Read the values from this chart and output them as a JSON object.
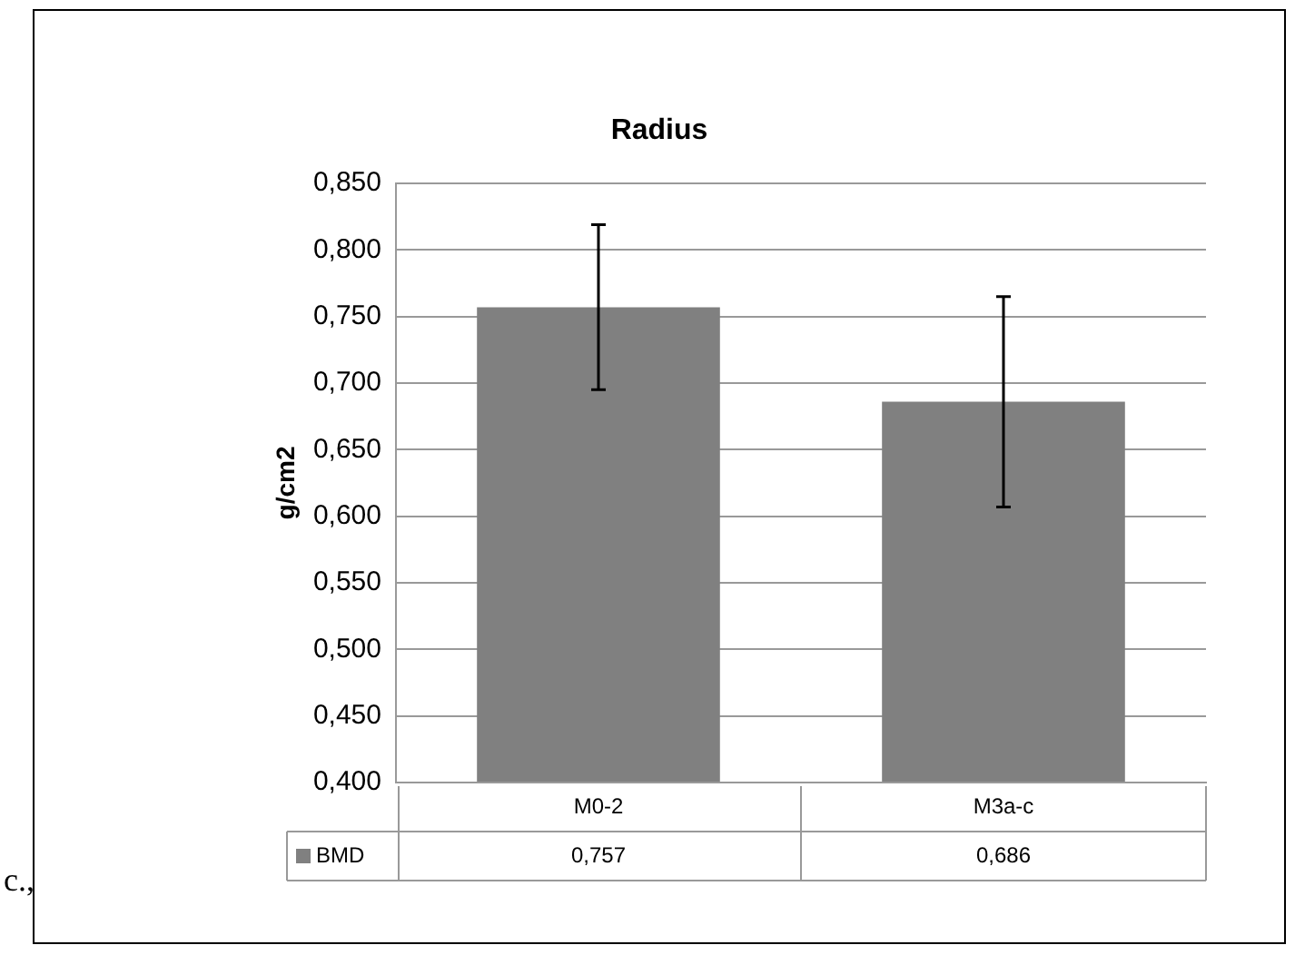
{
  "chart_data": {
    "type": "bar",
    "title": "Radius",
    "ylabel": "g/cm2",
    "categories": [
      "M0-2",
      "M3a-c"
    ],
    "series": [
      {
        "name": "BMD",
        "color": "#808080",
        "values": [
          0.757,
          0.686
        ],
        "errors": [
          0.062,
          0.079
        ]
      }
    ],
    "ylim": [
      0.4,
      0.85
    ],
    "yticks": [
      {
        "value": 0.4,
        "label": "0,400"
      },
      {
        "value": 0.45,
        "label": "0,450"
      },
      {
        "value": 0.5,
        "label": "0,500"
      },
      {
        "value": 0.55,
        "label": "0,550"
      },
      {
        "value": 0.6,
        "label": "0,600"
      },
      {
        "value": 0.65,
        "label": "0,650"
      },
      {
        "value": 0.7,
        "label": "0,700"
      },
      {
        "value": 0.75,
        "label": "0,750"
      },
      {
        "value": 0.8,
        "label": "0,800"
      },
      {
        "value": 0.85,
        "label": "0,850"
      }
    ],
    "value_labels": [
      "0,757",
      "0,686"
    ],
    "grid": "y",
    "legend": "bottom",
    "annotations": [
      "c.,"
    ]
  }
}
